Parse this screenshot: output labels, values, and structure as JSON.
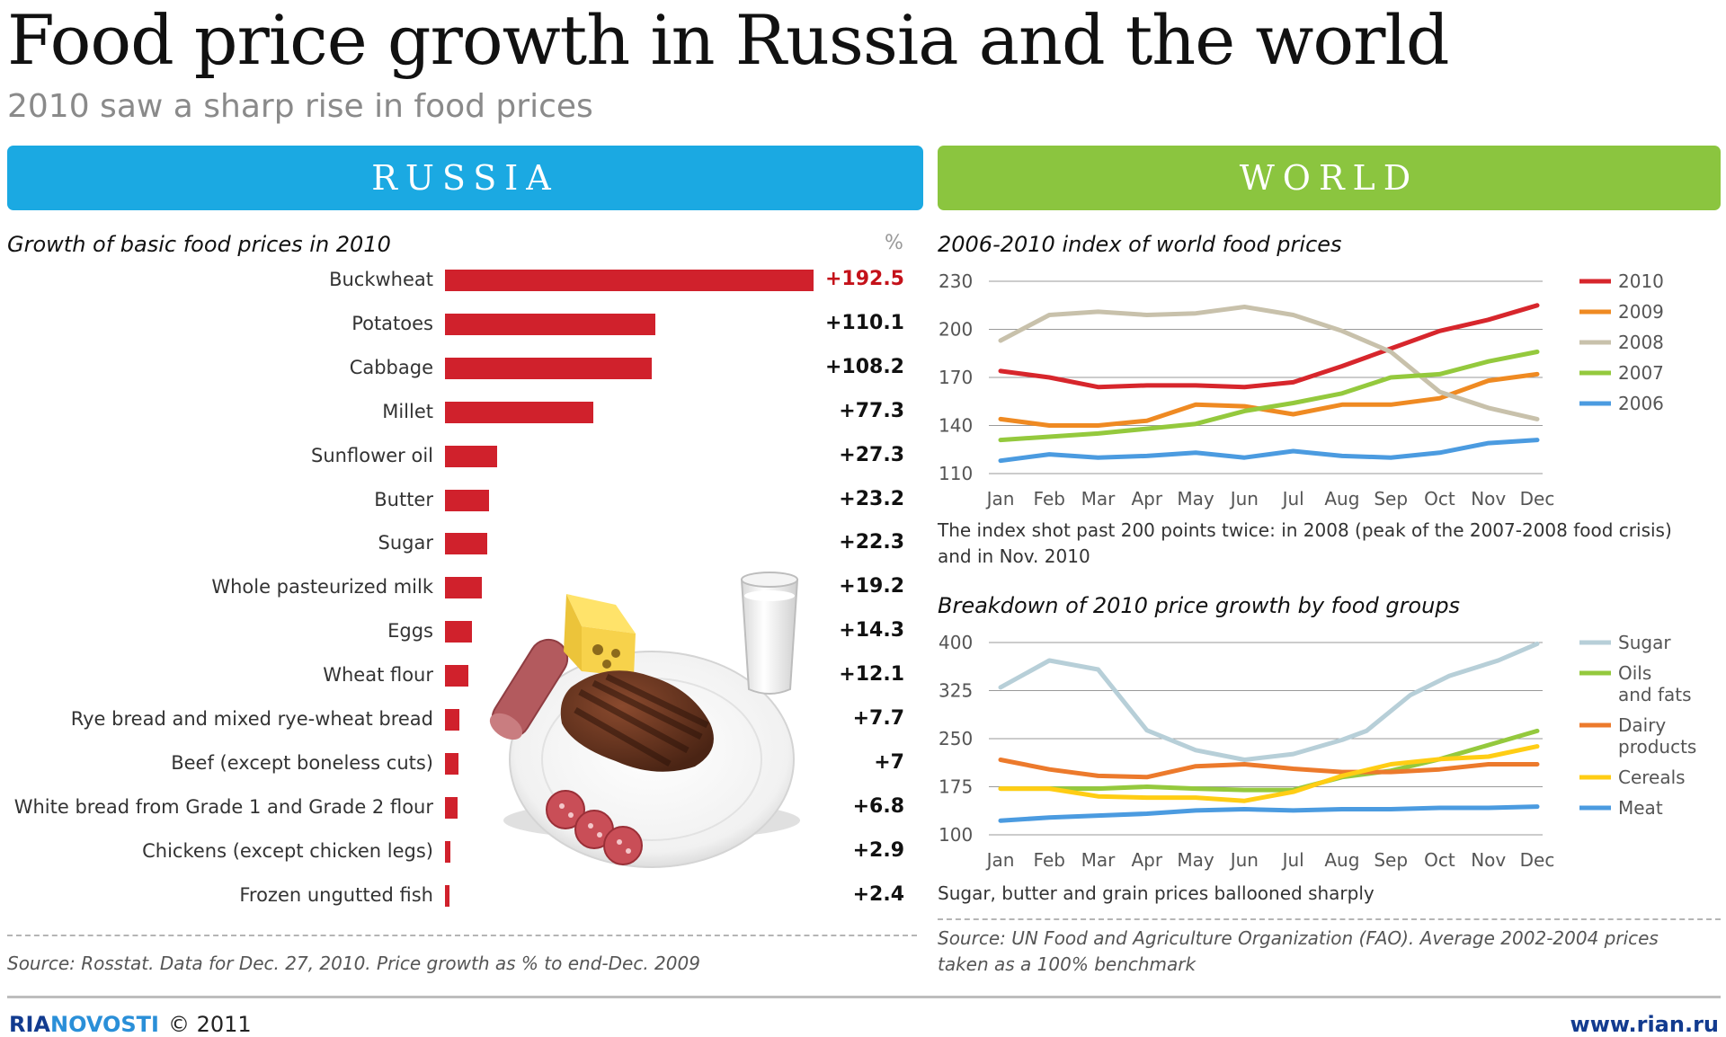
{
  "title": "Food price growth in Russia and the world",
  "subtitle": "2010 saw a sharp rise in food prices",
  "russia_banner": "RUSSIA",
  "world_banner": "WORLD",
  "colors": {
    "russia_banner": "#1ba9e2",
    "world_banner": "#8bc53f",
    "bar": "#d0212c",
    "top_value": "#c4121a"
  },
  "illustration": "food-plate-illustration",
  "chart_data": [
    {
      "type": "bar",
      "orientation": "horizontal",
      "title": "Growth of basic food prices in 2010",
      "unit_label": "%",
      "categories": [
        "Buckwheat",
        "Potatoes",
        "Cabbage",
        "Millet",
        "Sunflower oil",
        "Butter",
        "Sugar",
        "Whole pasteurized milk",
        "Eggs",
        "Wheat flour",
        "Rye bread and mixed rye-wheat bread",
        "Beef (except boneless cuts)",
        "White bread from Grade 1 and Grade 2 flour",
        "Chickens (except chicken legs)",
        "Frozen ungutted fish"
      ],
      "values": [
        192.5,
        110.1,
        108.2,
        77.3,
        27.3,
        23.2,
        22.3,
        19.2,
        14.3,
        12.1,
        7.7,
        7,
        6.8,
        2.9,
        2.4
      ],
      "value_labels": [
        "+192.5",
        "+110.1",
        "+108.2",
        "+77.3",
        "+27.3",
        "+23.2",
        "+22.3",
        "+19.2",
        "+14.3",
        "+12.1",
        "+7.7",
        "+7",
        "+6.8",
        "+2.9",
        "+2.4"
      ],
      "source": "Source: Rosstat. Data for Dec. 27, 2010. Price growth as % to end-Dec. 2009"
    },
    {
      "type": "line",
      "title": "2006-2010 index of world food prices",
      "categories": [
        "Jan",
        "Feb",
        "Mar",
        "Apr",
        "May",
        "Jun",
        "Jul",
        "Aug",
        "Sep",
        "Oct",
        "Nov",
        "Dec"
      ],
      "ylim": [
        110,
        230
      ],
      "yticks": [
        110,
        140,
        170,
        200,
        230
      ],
      "series": [
        {
          "name": "2010",
          "color": "#d7262c",
          "values": [
            174,
            170,
            164,
            165,
            165,
            164,
            167,
            177,
            188,
            199,
            206,
            215
          ]
        },
        {
          "name": "2009",
          "color": "#ef8a22",
          "values": [
            144,
            140,
            140,
            143,
            153,
            152,
            147,
            153,
            153,
            157,
            168,
            172
          ]
        },
        {
          "name": "2008",
          "color": "#c8c1ab",
          "values": [
            193,
            209,
            211,
            209,
            210,
            214,
            209,
            199,
            186,
            161,
            151,
            144
          ]
        },
        {
          "name": "2007",
          "color": "#94c93d",
          "values": [
            131,
            133,
            135,
            138,
            141,
            149,
            154,
            160,
            170,
            172,
            180,
            186
          ]
        },
        {
          "name": "2006",
          "color": "#4b9be0",
          "values": [
            118,
            122,
            120,
            121,
            123,
            120,
            124,
            121,
            120,
            123,
            129,
            131
          ]
        }
      ],
      "note": "The index shot past 200 points twice: in 2008 (peak of the 2007-2008 food crisis) and in Nov. 2010"
    },
    {
      "type": "line",
      "title": "Breakdown of 2010 price growth by food groups",
      "categories": [
        "Jan",
        "Feb",
        "Mar",
        "Apr",
        "May",
        "Jun",
        "Jul",
        "Aug",
        "Sep",
        "Oct",
        "Nov",
        "Dec"
      ],
      "ylim": [
        100,
        400
      ],
      "yticks": [
        100,
        175,
        250,
        325,
        400
      ],
      "series": [
        {
          "name": "Sugar",
          "color": "#b7cfd8",
          "values": [
            330,
            372,
            358,
            263,
            232,
            217,
            226,
            248,
            262,
            318,
            348,
            372,
            398
          ],
          "x": [
            0,
            1,
            2,
            3,
            4,
            5,
            6,
            7,
            7.5,
            8.4,
            9.2,
            10.2,
            11
          ]
        },
        {
          "name": "Oils\nand fats",
          "color": "#94c93d",
          "values": [
            172,
            172,
            172,
            175,
            172,
            170,
            170,
            190,
            200,
            218,
            240,
            262
          ]
        },
        {
          "name": "Dairy\nproducts",
          "color": "#ec7a2c",
          "values": [
            217,
            202,
            192,
            190,
            207,
            210,
            203,
            198,
            198,
            202,
            210,
            210
          ]
        },
        {
          "name": "Cereals",
          "color": "#ffcd14",
          "values": [
            172,
            172,
            160,
            158,
            158,
            153,
            167,
            192,
            210,
            218,
            222,
            238
          ]
        },
        {
          "name": "Meat",
          "color": "#4b9be0",
          "values": [
            122,
            127,
            130,
            133,
            138,
            140,
            138,
            140,
            140,
            142,
            142,
            144
          ]
        }
      ],
      "note": "Sugar, butter and grain prices ballooned sharply"
    }
  ],
  "world_source": "Source: UN Food and Agriculture Organization (FAO). Average 2002-2004 prices taken as a 100% benchmark",
  "footer": {
    "logo_part1": "RIA",
    "logo_part2": "NOVOSTI",
    "year": "© 2011",
    "site": "www.rian.ru"
  }
}
